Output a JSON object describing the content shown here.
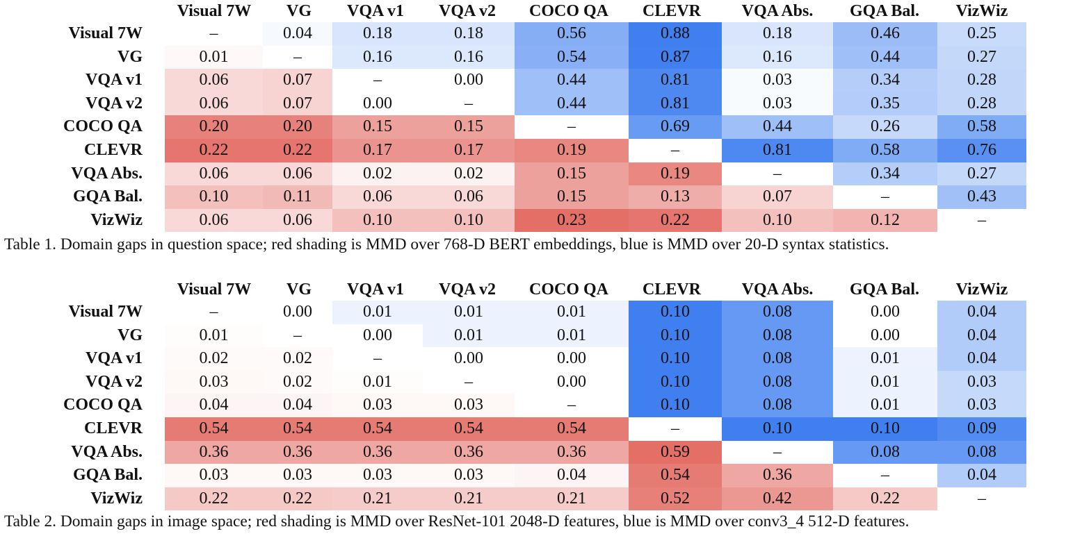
{
  "tables": [
    {
      "columns": [
        "Visual 7W",
        "VG",
        "VQA v1",
        "VQA v2",
        "COCO QA",
        "CLEVR",
        "VQA Abs.",
        "GQA Bal.",
        "VizWiz"
      ],
      "rows": [
        {
          "label": "Visual 7W",
          "cells": [
            "–",
            "0.04",
            "0.18",
            "0.18",
            "0.56",
            "0.88",
            "0.18",
            "0.46",
            "0.25"
          ]
        },
        {
          "label": "VG",
          "cells": [
            "0.01",
            "–",
            "0.16",
            "0.16",
            "0.54",
            "0.87",
            "0.16",
            "0.44",
            "0.27"
          ]
        },
        {
          "label": "VQA v1",
          "cells": [
            "0.06",
            "0.07",
            "–",
            "0.00",
            "0.44",
            "0.81",
            "0.03",
            "0.34",
            "0.28"
          ]
        },
        {
          "label": "VQA v2",
          "cells": [
            "0.06",
            "0.07",
            "0.00",
            "–",
            "0.44",
            "0.81",
            "0.03",
            "0.35",
            "0.28"
          ]
        },
        {
          "label": "COCO QA",
          "cells": [
            "0.20",
            "0.20",
            "0.15",
            "0.15",
            "–",
            "0.69",
            "0.44",
            "0.26",
            "0.58"
          ]
        },
        {
          "label": "CLEVR",
          "cells": [
            "0.22",
            "0.22",
            "0.17",
            "0.17",
            "0.19",
            "–",
            "0.81",
            "0.58",
            "0.76"
          ]
        },
        {
          "label": "VQA Abs.",
          "cells": [
            "0.06",
            "0.06",
            "0.02",
            "0.02",
            "0.15",
            "0.19",
            "–",
            "0.34",
            "0.27"
          ]
        },
        {
          "label": "GQA Bal.",
          "cells": [
            "0.10",
            "0.11",
            "0.06",
            "0.06",
            "0.15",
            "0.13",
            "0.07",
            "–",
            "0.43"
          ]
        },
        {
          "label": "VizWiz",
          "cells": [
            "0.06",
            "0.06",
            "0.10",
            "0.10",
            "0.23",
            "0.22",
            "0.10",
            "0.12",
            "–"
          ]
        }
      ],
      "shading": {
        "red_max": 0.23,
        "blue_max": 0.88
      },
      "caption": "Table 1. Domain gaps in question space; red shading is MMD over 768-D BERT embeddings, blue is MMD over 20-D syntax statistics."
    },
    {
      "columns": [
        "Visual 7W",
        "VG",
        "VQA v1",
        "VQA v2",
        "COCO QA",
        "CLEVR",
        "VQA Abs.",
        "GQA Bal.",
        "VizWiz"
      ],
      "rows": [
        {
          "label": "Visual 7W",
          "cells": [
            "–",
            "0.00",
            "0.01",
            "0.01",
            "0.01",
            "0.10",
            "0.08",
            "0.00",
            "0.04"
          ]
        },
        {
          "label": "VG",
          "cells": [
            "0.01",
            "–",
            "0.00",
            "0.01",
            "0.01",
            "0.10",
            "0.08",
            "0.00",
            "0.04"
          ]
        },
        {
          "label": "VQA v1",
          "cells": [
            "0.02",
            "0.02",
            "–",
            "0.00",
            "0.00",
            "0.10",
            "0.08",
            "0.01",
            "0.04"
          ]
        },
        {
          "label": "VQA v2",
          "cells": [
            "0.03",
            "0.02",
            "0.01",
            "–",
            "0.00",
            "0.10",
            "0.08",
            "0.01",
            "0.03"
          ]
        },
        {
          "label": "COCO QA",
          "cells": [
            "0.04",
            "0.04",
            "0.03",
            "0.03",
            "–",
            "0.10",
            "0.08",
            "0.01",
            "0.03"
          ]
        },
        {
          "label": "CLEVR",
          "cells": [
            "0.54",
            "0.54",
            "0.54",
            "0.54",
            "0.54",
            "–",
            "0.10",
            "0.10",
            "0.09"
          ]
        },
        {
          "label": "VQA Abs.",
          "cells": [
            "0.36",
            "0.36",
            "0.36",
            "0.36",
            "0.36",
            "0.59",
            "–",
            "0.08",
            "0.08"
          ]
        },
        {
          "label": "GQA Bal.",
          "cells": [
            "0.03",
            "0.03",
            "0.03",
            "0.03",
            "0.04",
            "0.54",
            "0.36",
            "–",
            "0.04"
          ]
        },
        {
          "label": "VizWiz",
          "cells": [
            "0.22",
            "0.22",
            "0.21",
            "0.21",
            "0.21",
            "0.52",
            "0.42",
            "0.22",
            "–"
          ]
        }
      ],
      "shading": {
        "red_max": 0.59,
        "blue_max": 0.1
      },
      "caption": "Table 2. Domain gaps in image space; red shading is MMD over ResNet-101 2048-D features, blue is MMD over conv3_4 512-D features."
    }
  ],
  "colors": {
    "red": "#e2675f",
    "blue": "#3f7ff0",
    "background": "#ffffff"
  }
}
